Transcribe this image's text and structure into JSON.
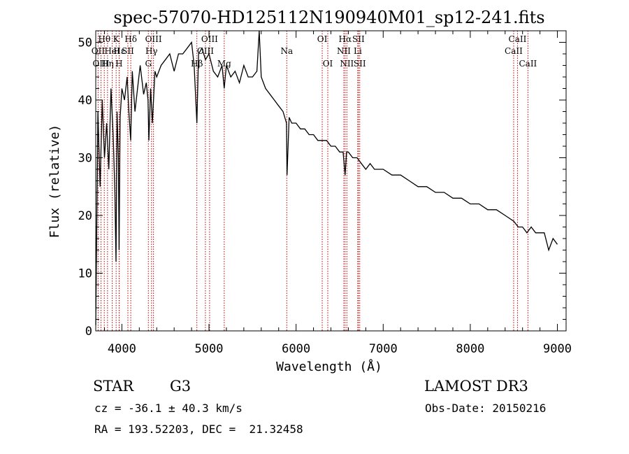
{
  "chart_data": {
    "type": "line",
    "title": "spec-57070-HD125112N190940M01_sp12-241.fits",
    "xlabel": "Wavelength (Å)",
    "ylabel": "Flux (relative)",
    "xlim": [
      3700,
      9100
    ],
    "ylim": [
      0,
      52
    ],
    "xticks": [
      4000,
      5000,
      6000,
      7000,
      8000,
      9000
    ],
    "yticks": [
      0,
      10,
      20,
      30,
      40,
      50
    ],
    "xtick_labels": [
      "4000",
      "5000",
      "6000",
      "7000",
      "8000",
      "9000"
    ],
    "ytick_labels": [
      "0",
      "10",
      "20",
      "30",
      "40",
      "50"
    ],
    "line_color": "#000000",
    "marker_color": "#c00000",
    "series": [
      {
        "name": "spectrum",
        "x": [
          3700,
          3725,
          3750,
          3775,
          3800,
          3825,
          3850,
          3875,
          3900,
          3920,
          3933,
          3945,
          3960,
          3968,
          3980,
          4000,
          4030,
          4060,
          4080,
          4101,
          4120,
          4150,
          4180,
          4210,
          4250,
          4280,
          4300,
          4310,
          4330,
          4350,
          4380,
          4400,
          4450,
          4500,
          4550,
          4600,
          4650,
          4700,
          4750,
          4800,
          4830,
          4861,
          4880,
          4920,
          4960,
          5000,
          5050,
          5100,
          5150,
          5175,
          5200,
          5250,
          5300,
          5350,
          5400,
          5450,
          5500,
          5550,
          5577,
          5600,
          5650,
          5700,
          5750,
          5800,
          5850,
          5890,
          5896,
          5920,
          5950,
          6000,
          6050,
          6100,
          6150,
          6200,
          6250,
          6300,
          6350,
          6400,
          6450,
          6500,
          6540,
          6563,
          6580,
          6600,
          6650,
          6700,
          6750,
          6800,
          6850,
          6900,
          6950,
          7000,
          7100,
          7200,
          7300,
          7400,
          7500,
          7600,
          7700,
          7800,
          7900,
          8000,
          8100,
          8200,
          8300,
          8400,
          8500,
          8550,
          8600,
          8650,
          8700,
          8750,
          8800,
          8850,
          8900,
          8950,
          9000
        ],
        "y": [
          1,
          38,
          25,
          40,
          30,
          36,
          28,
          42,
          34,
          24,
          12,
          38,
          30,
          14,
          37,
          42,
          40,
          44,
          38,
          33,
          45,
          38,
          42,
          46,
          41,
          43,
          40,
          33,
          42,
          36,
          45,
          44,
          46,
          47,
          48,
          45,
          48,
          48,
          49,
          50,
          46,
          36,
          48,
          49,
          47,
          48,
          45,
          44,
          46,
          42,
          46,
          44,
          45,
          43,
          46,
          44,
          44,
          45,
          52,
          44,
          42,
          41,
          40,
          39,
          38,
          36,
          27,
          37,
          36,
          36,
          35,
          35,
          34,
          34,
          33,
          33,
          33,
          32,
          32,
          31,
          31,
          27,
          31,
          31,
          30,
          30,
          29,
          28,
          29,
          28,
          28,
          28,
          27,
          27,
          26,
          25,
          25,
          24,
          24,
          23,
          23,
          22,
          22,
          21,
          21,
          20,
          19,
          18,
          18,
          17,
          18,
          17,
          17,
          17,
          14,
          16,
          15
        ]
      }
    ],
    "line_markers": [
      {
        "label": "Hθ",
        "wl": 3798,
        "row": 1
      },
      {
        "label": "OII",
        "wl": 3727,
        "row": 2
      },
      {
        "label": "OIII",
        "wl": 3760,
        "row": 3
      },
      {
        "label": "K",
        "wl": 3934,
        "row": 1
      },
      {
        "label": "Hε",
        "wl": 3970,
        "row": 2
      },
      {
        "label": "Hη",
        "wl": 3835,
        "row": 3
      },
      {
        "label": "HeI",
        "wl": 3889,
        "row": 2
      },
      {
        "label": "H",
        "wl": 3968,
        "row": 3
      },
      {
        "label": "SII",
        "wl": 4069,
        "row": 2
      },
      {
        "label": "Hδ",
        "wl": 4102,
        "row": 1
      },
      {
        "label": "OIII",
        "wl": 4363,
        "row": 1
      },
      {
        "label": "Hγ",
        "wl": 4340,
        "row": 2
      },
      {
        "label": "G",
        "wl": 4304,
        "row": 3
      },
      {
        "label": "Hβ",
        "wl": 4861,
        "row": 3
      },
      {
        "label": "OIII",
        "wl": 5007,
        "row": 1
      },
      {
        "label": "OIII",
        "wl": 4959,
        "row": 2
      },
      {
        "label": "Mg",
        "wl": 5175,
        "row": 3
      },
      {
        "label": "Na",
        "wl": 5893,
        "row": 2
      },
      {
        "label": "OI",
        "wl": 6300,
        "row": 1
      },
      {
        "label": "OI",
        "wl": 6364,
        "row": 3
      },
      {
        "label": "Hα",
        "wl": 6563,
        "row": 1
      },
      {
        "label": "NII",
        "wl": 6548,
        "row": 2
      },
      {
        "label": "NII",
        "wl": 6583,
        "row": 3
      },
      {
        "label": "SII",
        "wl": 6716,
        "row": 1
      },
      {
        "label": "Li",
        "wl": 6708,
        "row": 2
      },
      {
        "label": "SII",
        "wl": 6731,
        "row": 3
      },
      {
        "label": "CaII",
        "wl": 8542,
        "row": 1
      },
      {
        "label": "CaII",
        "wl": 8498,
        "row": 2
      },
      {
        "label": "CaII",
        "wl": 8662,
        "row": 3
      }
    ]
  },
  "info": {
    "object_class": "STAR",
    "subclass": "G3",
    "survey": "LAMOST DR3",
    "cz": "cz = -36.1 ± 40.3 km/s",
    "obs_date": "Obs-Date: 20150216",
    "coords": "RA = 193.52203, DEC =  21.32458"
  }
}
